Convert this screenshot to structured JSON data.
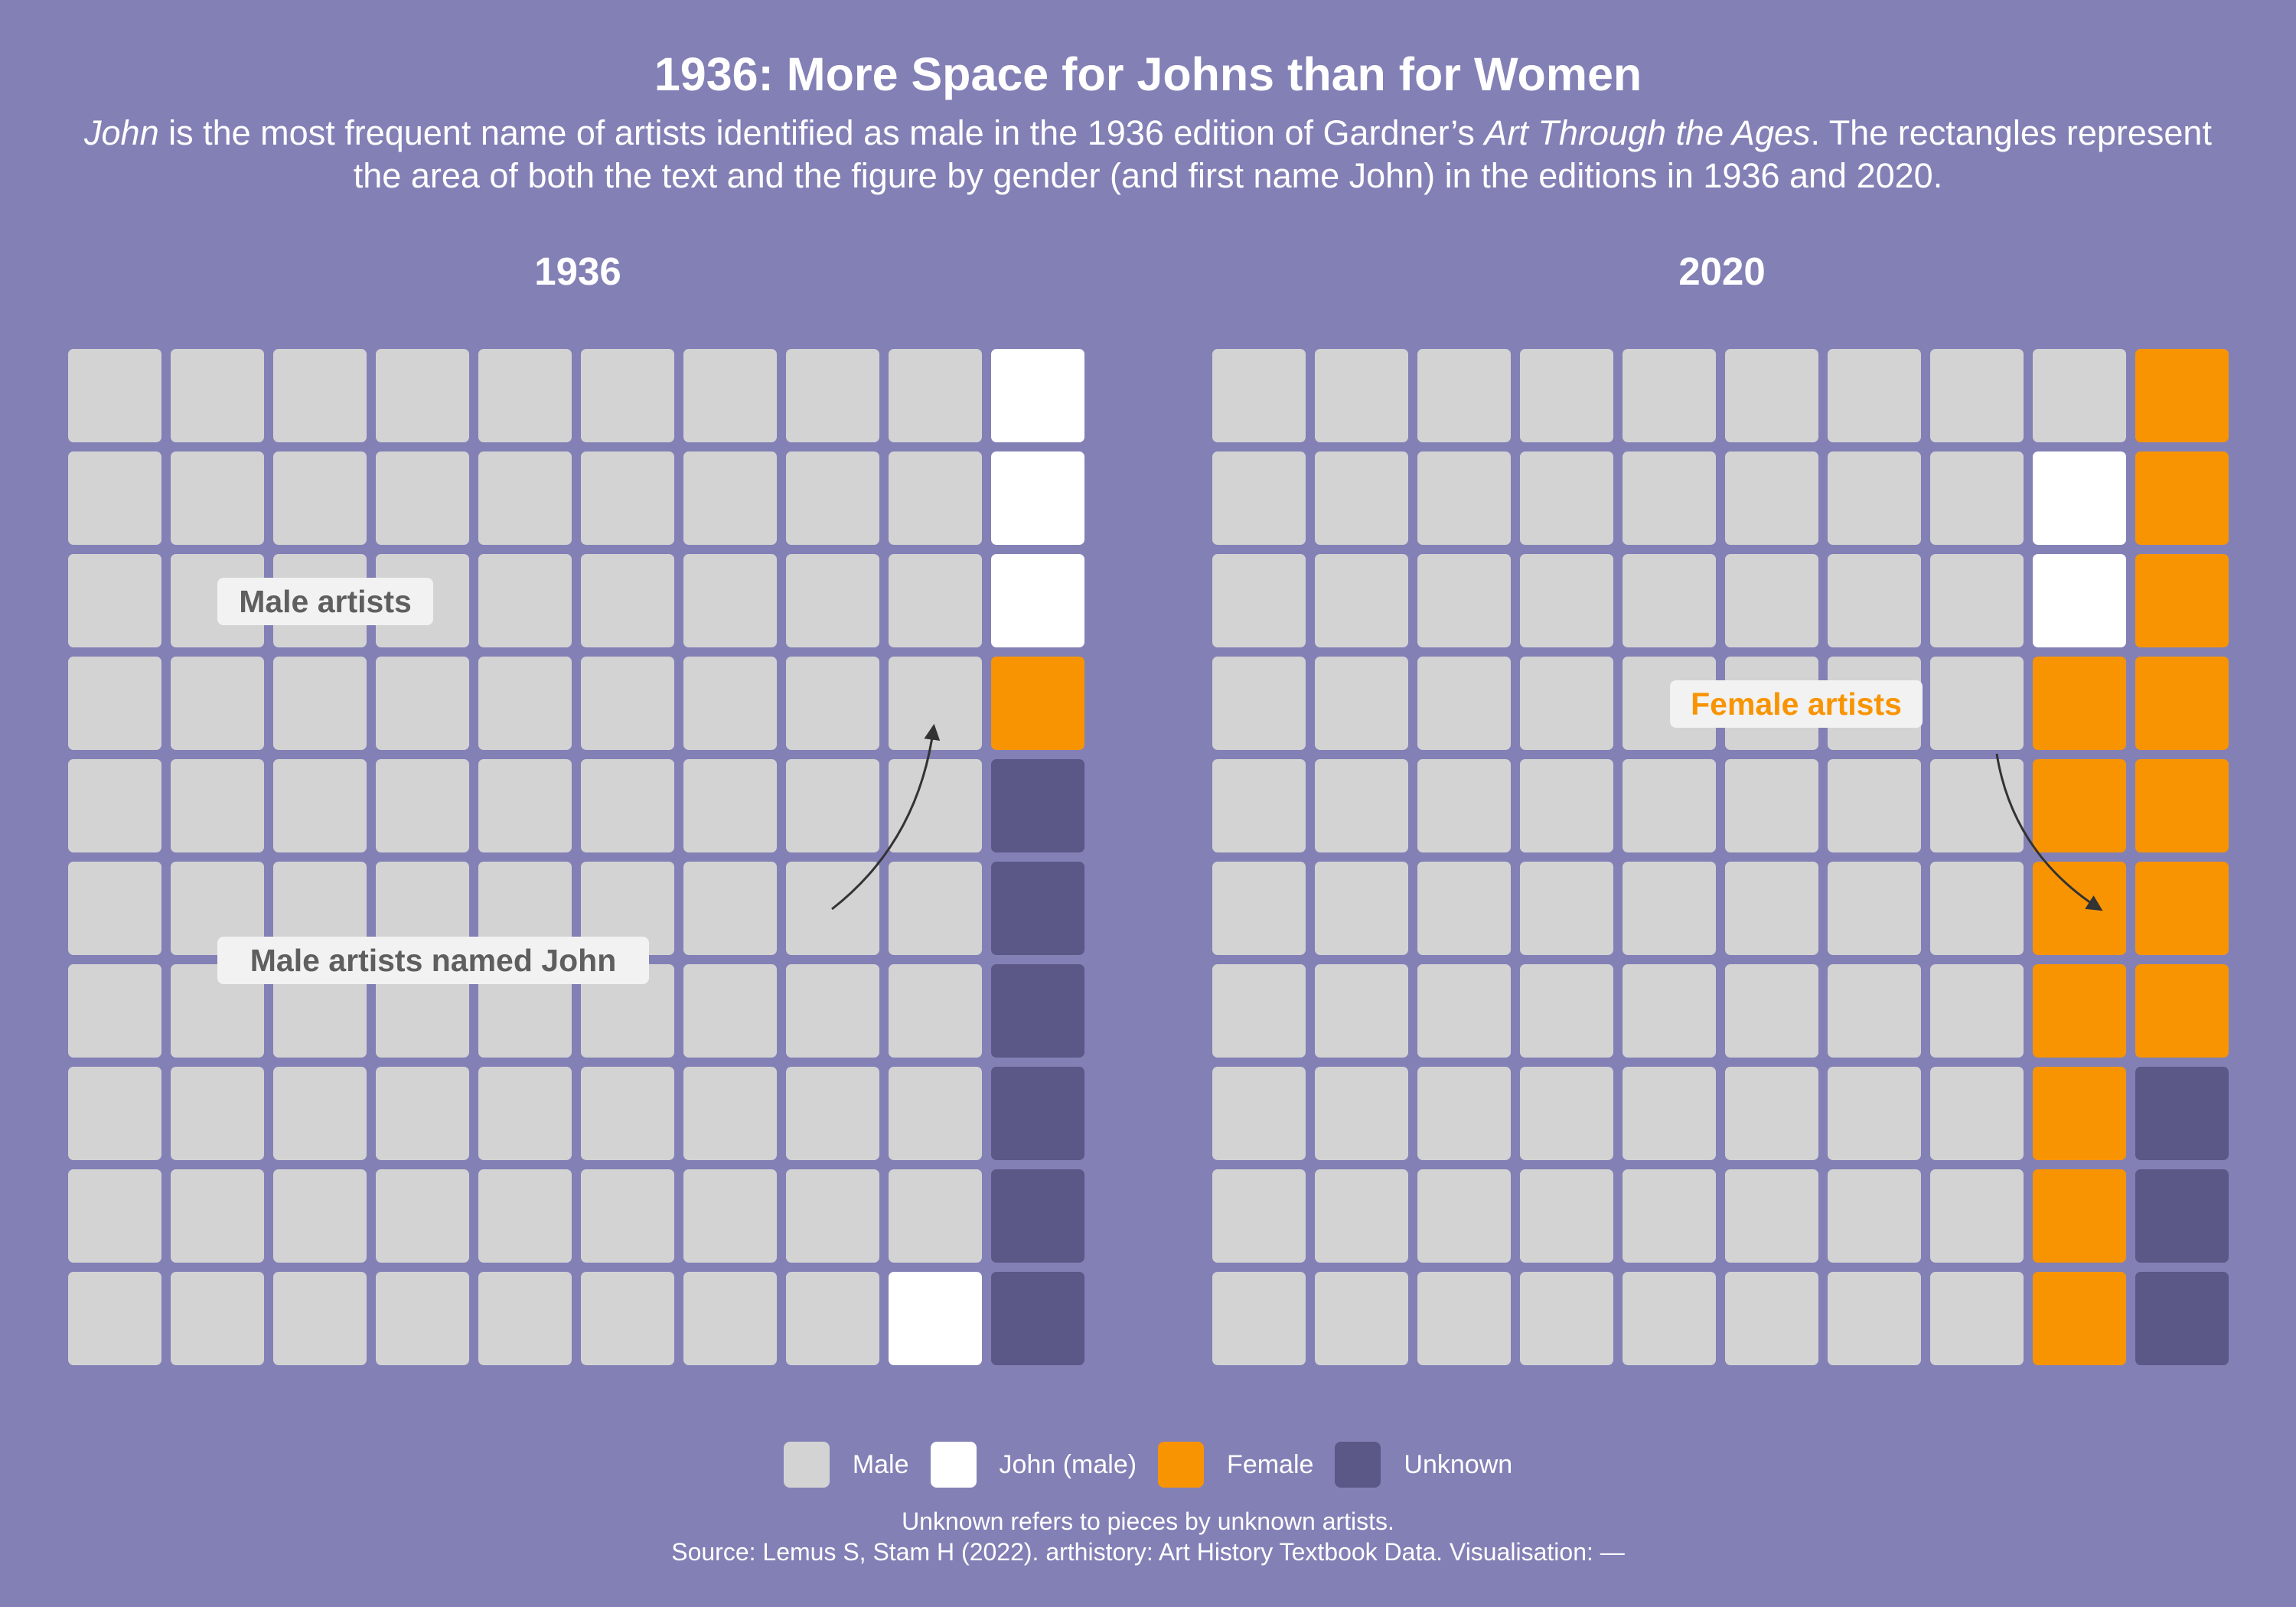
{
  "title": "1936: More Space for Johns than for Women",
  "subtitle": {
    "em1": "John",
    "part1": " is the most frequent name of artists identified as male in the 1936 edition of Gardner’s ",
    "em2": "Art Through the Ages",
    "part2": ". The rectangles represent the area of both the text and the figure by gender (and first name John) in the editions in 1936 and 2020."
  },
  "colors": {
    "background": "#8380b6",
    "Male": "#d3d3d3",
    "John (male)": "#ffffff",
    "Female": "#f89402",
    "Unknown": "#5b5786"
  },
  "chart_data": [
    {
      "type": "waffle",
      "title": "1936",
      "rows": 10,
      "columns": 10,
      "categories": [
        "Male",
        "John (male)",
        "Female",
        "Unknown"
      ],
      "values": [
        89,
        4,
        1,
        6
      ],
      "annotations": [
        {
          "text": "Male artists",
          "color": "#5f5f5f"
        },
        {
          "text": "Male artists named John",
          "color": "#5f5f5f"
        }
      ]
    },
    {
      "type": "waffle",
      "title": "2020",
      "rows": 10,
      "columns": 10,
      "categories": [
        "Male",
        "John (male)",
        "Female",
        "Unknown"
      ],
      "values": [
        81,
        2,
        14,
        3
      ],
      "annotations": [
        {
          "text": "Female artists",
          "color": "#f89402"
        }
      ]
    }
  ],
  "legend": [
    {
      "label": "Male",
      "color": "#d3d3d3"
    },
    {
      "label": "John (male)",
      "color": "#ffffff"
    },
    {
      "label": "Female",
      "color": "#f89402"
    },
    {
      "label": "Unknown",
      "color": "#5b5786"
    }
  ],
  "caption": {
    "line1": "Unknown refers to pieces by unknown artists.",
    "line2": "Source: Lemus S, Stam H (2022). arthistory: Art History Textbook Data. Visualisation: —"
  }
}
